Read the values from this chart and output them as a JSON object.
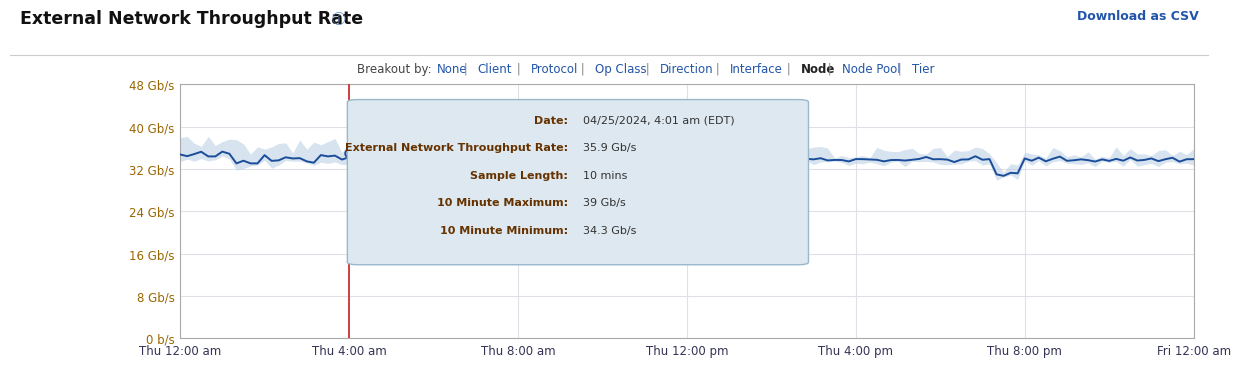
{
  "title": "External Network Throughput Rate",
  "title_icon": "ⓘ",
  "download_csv_text": "Download as CSV",
  "breakout_label": "Breakout by:",
  "breakout_items": [
    "None",
    "Client",
    "Protocol",
    "Op Class",
    "Direction",
    "Interface",
    "Node",
    "Node Pool",
    "Tier"
  ],
  "breakout_active": "Node",
  "yticks": [
    0,
    8,
    16,
    24,
    32,
    40,
    48
  ],
  "ytick_labels": [
    "0 b/s",
    "8 Gb/s",
    "16 Gb/s",
    "24 Gb/s",
    "32 Gb/s",
    "40 Gb/s",
    "48 Gb/s"
  ],
  "xtick_labels": [
    "Thu 12:00 am",
    "Thu 4:00 am",
    "Thu 8:00 am",
    "Thu 12:00 pm",
    "Thu 4:00 pm",
    "Thu 8:00 pm",
    "Fri 12:00 am"
  ],
  "xtick_positions": [
    0,
    4,
    8,
    12,
    16,
    20,
    24
  ],
  "xmin": 0,
  "xmax": 24,
  "ymin": 0,
  "ymax": 48,
  "line_color": "#1a4d99",
  "fill_color": "#b8cce4",
  "vertical_line_x": 4,
  "vertical_line_color": "#cc3333",
  "tooltip_bg": "#dde8f0",
  "tooltip_border": "#99b8cc",
  "background_color": "#ffffff",
  "plot_bg": "#ffffff",
  "grid_color": "#e0e0e8",
  "ytick_color": "#996600",
  "xtick_color": "#333355",
  "axis_spine_color": "#aaaaaa",
  "tooltip_label_color": "#663300",
  "tooltip_value_color": "#333333",
  "link_color": "#2255aa",
  "active_color": "#222222",
  "sep_color": "#888888"
}
